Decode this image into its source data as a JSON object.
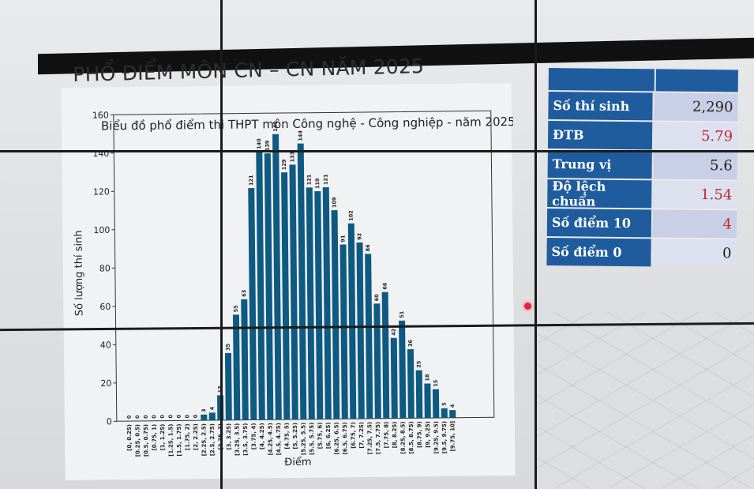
{
  "slide": {
    "title": "PHỔ ĐIỂM MÔN CN – CN NĂM 2025"
  },
  "stats": {
    "rows": [
      {
        "label": "Số thí sinh",
        "value": "2,290",
        "emphasis": false
      },
      {
        "label": "ĐTB",
        "value": "5.79",
        "emphasis": true
      },
      {
        "label": "Trung vị",
        "value": "5.6",
        "emphasis": false
      },
      {
        "label": "Độ lệch chuẩn",
        "value": "1.54",
        "emphasis": true
      },
      {
        "label": "Số điểm 10",
        "value": "4",
        "emphasis": true
      },
      {
        "label": "Số điểm 0",
        "value": "0",
        "emphasis": false
      }
    ]
  },
  "colors": {
    "bar": "#0f5a82",
    "table_header": "#1f5c9e",
    "emphasis_value": "#c0282b",
    "laser_pointer": "#e8213a"
  },
  "chart_data": {
    "type": "bar",
    "title": "Biểu đồ phổ điểm thi THPT môn Công nghệ - Công nghiệp - năm 2025",
    "xlabel": "Điểm",
    "ylabel": "Số lượng thí sinh",
    "ylim": [
      0,
      160
    ],
    "yticks": [
      0,
      20,
      40,
      60,
      80,
      100,
      120,
      140,
      160
    ],
    "grid": false,
    "categories": [
      "[0, 0.25)",
      "[0.25, 0.5)",
      "[0.5, 0.75)",
      "[0.75, 1)",
      "[1, 1.25)",
      "[1.25, 1.5)",
      "[1.5, 1.75)",
      "[1.75, 2)",
      "[2, 2.25)",
      "[2.25, 2.5)",
      "[2.5, 2.75)",
      "[2.75, 3)",
      "[3, 3.25)",
      "[3.25, 3.5)",
      "[3.5, 3.75)",
      "[3.75, 4)",
      "[4, 4.25)",
      "[4.25, 4.5)",
      "[4.5, 4.75)",
      "[4.75, 5)",
      "[5, 5.25)",
      "[5.25, 5.5)",
      "[5.5, 5.75)",
      "[5.75, 6)",
      "[6, 6.25)",
      "[6.25, 6.5)",
      "[6.5, 6.75)",
      "[6.75, 7)",
      "[7, 7.25)",
      "[7.25, 7.5)",
      "[7.5, 7.75)",
      "[7.75, 8)",
      "[8, 8.25)",
      "[8.25, 8.5)",
      "[8.5, 8.75)",
      "[8.75, 9)",
      "[9, 9.25)",
      "[9.25, 9.5)",
      "[9.5, 9.75)",
      "[9.75, 10]"
    ],
    "values": [
      0,
      0,
      0,
      0,
      0,
      0,
      0,
      0,
      0,
      3,
      4,
      13,
      35,
      55,
      63,
      121,
      140,
      139,
      149,
      129,
      133,
      144,
      121,
      119,
      121,
      109,
      91,
      102,
      92,
      86,
      60,
      66,
      42,
      51,
      36,
      25,
      18,
      15,
      5,
      4
    ]
  }
}
